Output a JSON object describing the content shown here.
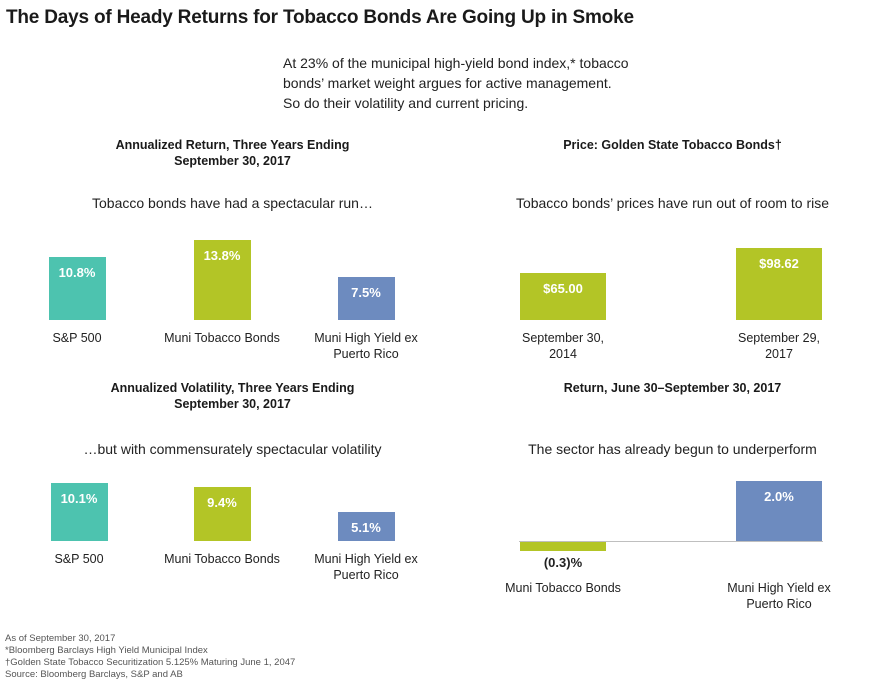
{
  "title": "The Days of Heady Returns for Tobacco Bonds Are Going Up in Smoke",
  "intro": [
    "At 23% of the municipal high-yield bond index,* tobacco",
    "bonds’ market weight argues for active management.",
    "So do their volatility and current pricing."
  ],
  "colors": {
    "teal": "#4dc3af",
    "green": "#b3c526",
    "blue": "#6d8bbf"
  },
  "chart_data": [
    {
      "type": "bar",
      "title": "Annualized Return, Three Years Ending September 30, 2017",
      "title_lines": [
        "Annualized Return, Three Years Ending",
        "September 30, 2017"
      ],
      "subtitle": "Tobacco bonds have had a spectacular run…",
      "categories": [
        "S&P 500",
        "Muni Tobacco Bonds",
        "Muni High Yield ex Puerto Rico"
      ],
      "category_lines": [
        [
          "S&P 500"
        ],
        [
          "Muni Tobacco Bonds"
        ],
        [
          "Muni High Yield ex",
          "Puerto Rico"
        ]
      ],
      "values": [
        10.8,
        13.8,
        7.5
      ],
      "labels": [
        "10.8%",
        "13.8%",
        "7.5%"
      ],
      "colors": [
        "#4dc3af",
        "#b3c526",
        "#6d8bbf"
      ],
      "ylim": [
        0,
        15
      ]
    },
    {
      "type": "bar",
      "title": "Price: Golden State Tobacco Bonds†",
      "title_lines": [
        "Price: Golden State Tobacco Bonds†"
      ],
      "subtitle": "Tobacco bonds’ prices have run out of room to rise",
      "categories": [
        "September 30, 2014",
        "September 29, 2017"
      ],
      "category_lines": [
        [
          "September 30,",
          "2014"
        ],
        [
          "September 29,",
          "2017"
        ]
      ],
      "values": [
        65.0,
        98.62
      ],
      "labels": [
        "$65.00",
        "$98.62"
      ],
      "colors": [
        "#b3c526",
        "#b3c526"
      ],
      "ylim": [
        0,
        100
      ]
    },
    {
      "type": "bar",
      "title": "Annualized Volatility, Three Years Ending September 30, 2017",
      "title_lines": [
        "Annualized Volatility, Three Years Ending",
        "September 30, 2017"
      ],
      "subtitle": "…but with commensurately spectacular volatility",
      "categories": [
        "S&P 500",
        "Muni Tobacco Bonds",
        "Muni High Yield ex Puerto Rico"
      ],
      "category_lines": [
        [
          "S&P 500"
        ],
        [
          "Muni Tobacco Bonds"
        ],
        [
          "Muni High Yield ex",
          "Puerto Rico"
        ]
      ],
      "values": [
        10.1,
        9.4,
        5.1
      ],
      "labels": [
        "10.1%",
        "9.4%",
        "5.1%"
      ],
      "colors": [
        "#4dc3af",
        "#b3c526",
        "#6d8bbf"
      ],
      "ylim": [
        0,
        10.5
      ]
    },
    {
      "type": "bar",
      "title": "Return, June 30–September 30, 2017",
      "title_lines": [
        "Return, June 30–September 30, 2017"
      ],
      "subtitle": "The sector has already begun to underperform",
      "categories": [
        "Muni Tobacco Bonds",
        "Muni High Yield ex Puerto Rico"
      ],
      "category_lines": [
        [
          "Muni Tobacco Bonds"
        ],
        [
          "Muni High Yield ex",
          "Puerto Rico"
        ]
      ],
      "values": [
        -0.3,
        2.0
      ],
      "labels": [
        "(0.3)%",
        "2.0%"
      ],
      "colors": [
        "#b3c526",
        "#6d8bbf"
      ],
      "ylim": [
        -0.3,
        2.0
      ]
    }
  ],
  "footnotes": [
    "As of September 30, 2017",
    "*Bloomberg Barclays High Yield Municipal Index",
    "†Golden State Tobacco Securitization 5.125% Maturing June 1, 2047",
    "Source: Bloomberg Barclays, S&P and AB"
  ]
}
